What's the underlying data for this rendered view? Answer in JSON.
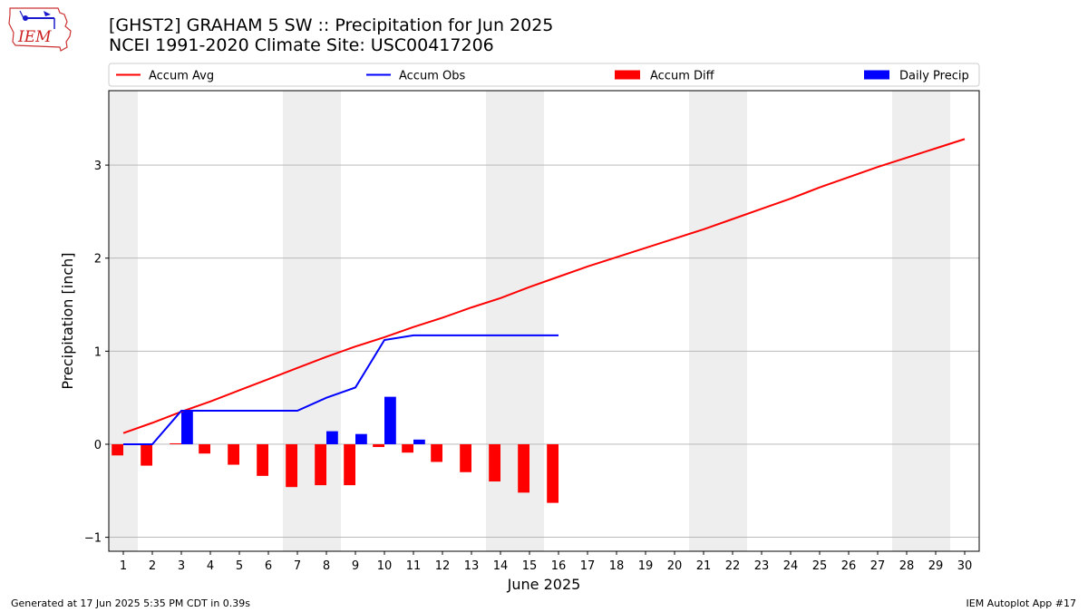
{
  "header": {
    "title_line1": "[GHST2] GRAHAM 5 SW :: Precipitation for Jun 2025",
    "title_line2": "NCEI 1991-2020 Climate Site: USC00417206",
    "logo_text": "IEM"
  },
  "footer": {
    "generated": "Generated at 17 Jun 2025 5:35 PM CDT in 0.39s",
    "app": "IEM Autoplot App #17"
  },
  "colors": {
    "accum_avg": "#ff0000",
    "accum_obs": "#0000ff",
    "accum_diff": "#ff0000",
    "daily_precip": "#0000ff",
    "weekend_shade": "#eeeeee",
    "grid": "#b0b0b0"
  },
  "chart_data": {
    "type": "bar",
    "xlabel": "June 2025",
    "ylabel": "Precipitation [inch]",
    "xlim": [
      0.5,
      30.5
    ],
    "ylim": [
      -1.15,
      3.8
    ],
    "yticks": [
      -1,
      0,
      1,
      2,
      3
    ],
    "xticks": [
      1,
      2,
      3,
      4,
      5,
      6,
      7,
      8,
      9,
      10,
      11,
      12,
      13,
      14,
      15,
      16,
      17,
      18,
      19,
      20,
      21,
      22,
      23,
      24,
      25,
      26,
      27,
      28,
      29,
      30
    ],
    "grid": "horizontal",
    "legend": {
      "placement": "top",
      "entries": [
        "Accum Avg",
        "Accum Obs",
        "Accum Diff",
        "Daily Precip"
      ]
    },
    "weekend_days": [
      1,
      7,
      8,
      14,
      15,
      21,
      22,
      28,
      29
    ],
    "series": [
      {
        "name": "Accum Avg",
        "kind": "line",
        "x": [
          1,
          2,
          3,
          4,
          5,
          6,
          7,
          8,
          9,
          10,
          11,
          12,
          13,
          14,
          15,
          16,
          17,
          18,
          19,
          20,
          21,
          22,
          23,
          24,
          25,
          26,
          27,
          28,
          29,
          30
        ],
        "values": [
          0.12,
          0.23,
          0.35,
          0.46,
          0.58,
          0.7,
          0.82,
          0.94,
          1.05,
          1.15,
          1.26,
          1.36,
          1.47,
          1.57,
          1.69,
          1.8,
          1.91,
          2.01,
          2.11,
          2.21,
          2.31,
          2.42,
          2.53,
          2.64,
          2.76,
          2.87,
          2.98,
          3.08,
          3.18,
          3.28
        ]
      },
      {
        "name": "Accum Obs",
        "kind": "line",
        "x": [
          1,
          2,
          3,
          4,
          5,
          6,
          7,
          8,
          9,
          10,
          11,
          12,
          13,
          14,
          15,
          16
        ],
        "values": [
          0.0,
          0.0,
          0.36,
          0.36,
          0.36,
          0.36,
          0.36,
          0.5,
          0.61,
          1.12,
          1.17,
          1.17,
          1.17,
          1.17,
          1.17,
          1.17
        ]
      },
      {
        "name": "Accum Diff",
        "kind": "bar",
        "x": [
          1,
          2,
          3,
          4,
          5,
          6,
          7,
          8,
          9,
          10,
          11,
          12,
          13,
          14,
          15,
          16
        ],
        "values": [
          -0.12,
          -0.23,
          0.01,
          -0.1,
          -0.22,
          -0.34,
          -0.46,
          -0.44,
          -0.44,
          -0.03,
          -0.09,
          -0.19,
          -0.3,
          -0.4,
          -0.52,
          -0.63
        ]
      },
      {
        "name": "Daily Precip",
        "kind": "bar",
        "x": [
          1,
          2,
          3,
          4,
          5,
          6,
          7,
          8,
          9,
          10,
          11,
          12,
          13,
          14,
          15,
          16
        ],
        "values": [
          0,
          0,
          0.36,
          0,
          0,
          0,
          0,
          0.14,
          0.11,
          0.51,
          0.05,
          0,
          0,
          0,
          0,
          0
        ]
      }
    ]
  }
}
